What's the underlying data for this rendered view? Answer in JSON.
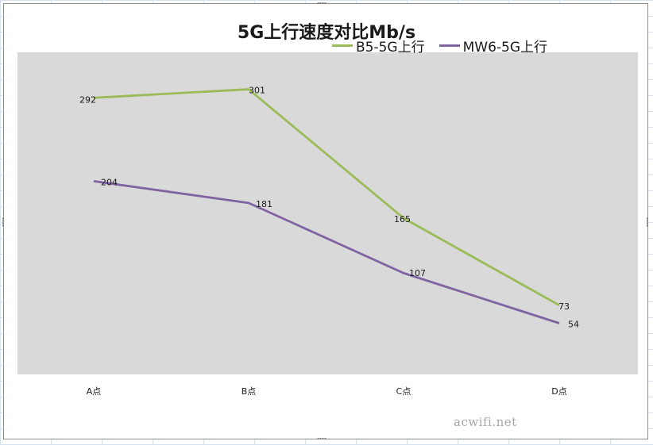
{
  "chart_data": {
    "type": "line",
    "title": "5G上行速度对比Mb/s",
    "categories": [
      "A点",
      "B点",
      "C点",
      "D点"
    ],
    "series": [
      {
        "name": "B5-5G上行",
        "color": "#9bbb59",
        "values": [
          292,
          301,
          165,
          73
        ]
      },
      {
        "name": "MW6-5G上行",
        "color": "#8064a2",
        "values": [
          204,
          181,
          107,
          54
        ]
      }
    ],
    "ylim": [
      0,
      340
    ],
    "xlabel": "",
    "ylabel": "",
    "grid": false,
    "legend_position": "top-right",
    "plot_background": "#d9d9d9"
  },
  "watermark": "acwifi.net"
}
